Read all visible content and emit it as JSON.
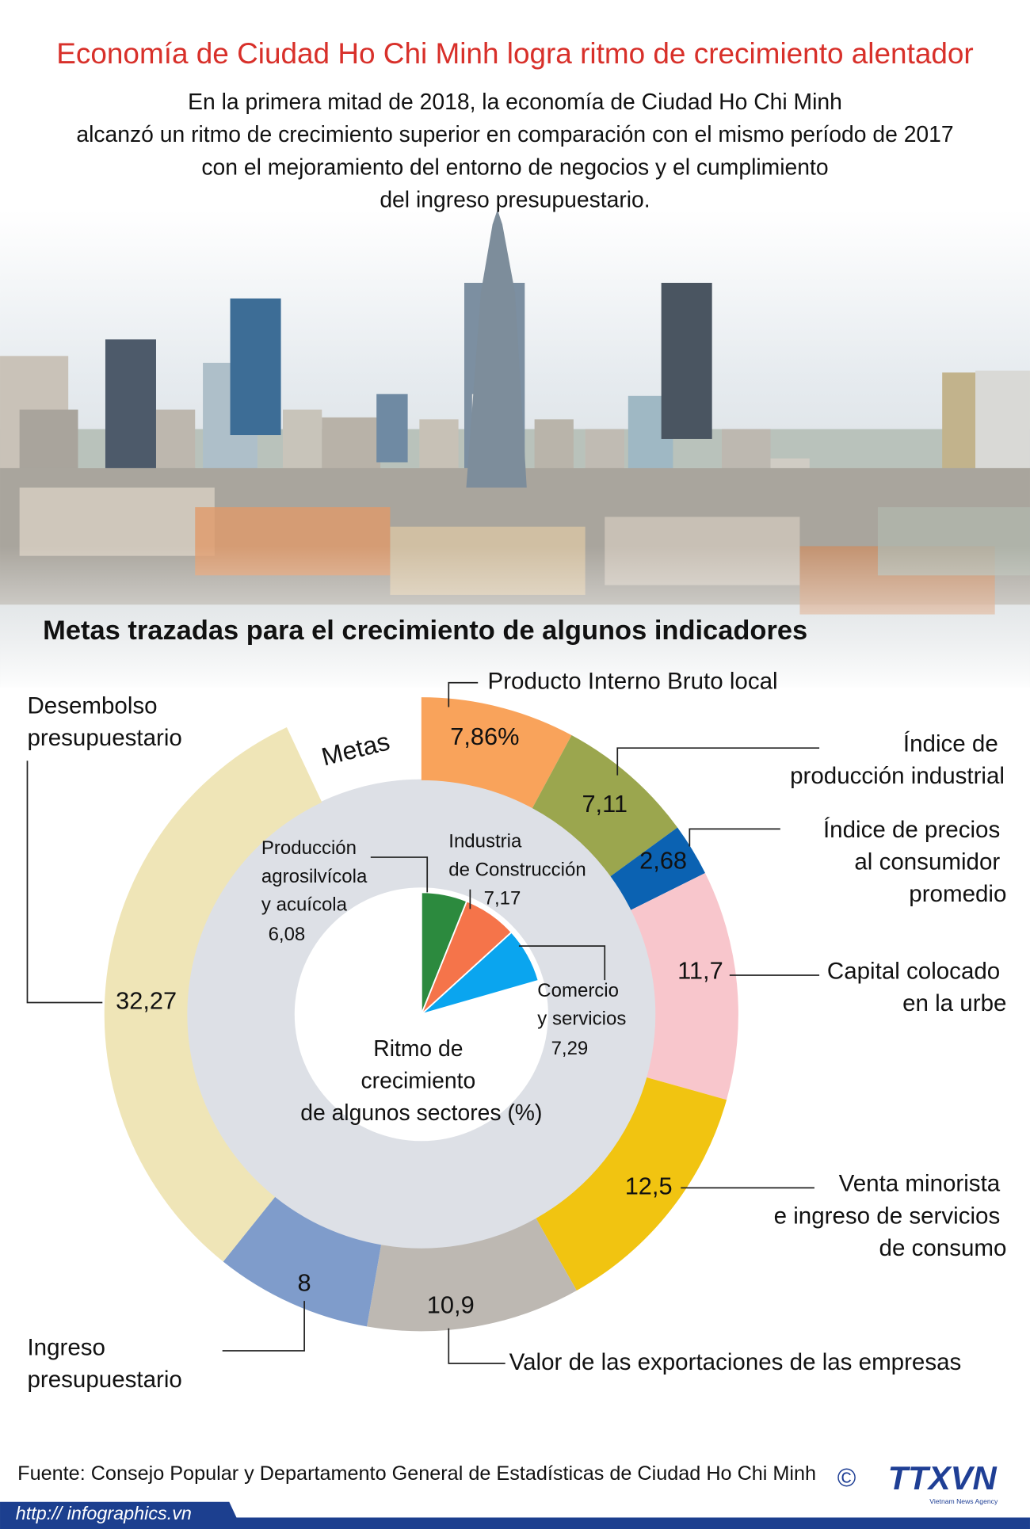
{
  "title": "Economía de Ciudad Ho Chi Minh logra ritmo de crecimiento alentador",
  "subtitle_lines": [
    "En la primera mitad de 2018, la economía de Ciudad Ho Chi Minh",
    "alcanzó un ritmo de crecimiento superior en comparación con el mismo período de 2017",
    "con el mejoramiento del entorno de negocios y el cumplimiento",
    "del ingreso presupuestario."
  ],
  "chart_data": [
    {
      "type": "donut",
      "title": "Metas trazadas para el crecimiento de algunos indicadores",
      "ring_label": "Metas",
      "categories": [
        "Producto Interno Bruto local",
        "Índice de producción industrial",
        "Índice de precios al consumidor promedio",
        "Capital colocado en la urbe",
        "Venta minorista e ingreso de servicios de consumo",
        "Valor de las exportaciones de las empresas",
        "Ingreso presupuestario",
        "Desembolso presupuestario"
      ],
      "values": [
        7.86,
        7.11,
        2.68,
        11.7,
        12.5,
        10.9,
        8,
        32.27
      ],
      "value_labels": [
        "7,86%",
        "7,11",
        "2,68",
        "11,7",
        "12,5",
        "10,9",
        "8",
        "32,27"
      ],
      "colors": [
        "#f9a35b",
        "#9ba64e",
        "#0b62b2",
        "#f8c6cc",
        "#f1c411",
        "#bdb8b2",
        "#7f9ccb",
        "#efe5b7"
      ]
    },
    {
      "type": "pie",
      "title": "Ritmo de crecimiento de algunos sectores (%)",
      "categories": [
        "Producción agrosilvícola y acuícola",
        "Industria de Construcción",
        "Comercio y servicios"
      ],
      "values": [
        6.08,
        7.17,
        7.29
      ],
      "value_labels": [
        "6,08",
        "7,17",
        "7,29"
      ],
      "colors": [
        "#2c8a3e",
        "#f5744a",
        "#0aa5ef"
      ]
    }
  ],
  "source": "Fuente: Consejo Popular y Departamento General de Estadísticas de Ciudad Ho Chi Minh",
  "copyright": "©",
  "url": "http:// infographics.vn",
  "logo": {
    "name": "TTXVN",
    "tagline": "Vietnam News Agency"
  }
}
